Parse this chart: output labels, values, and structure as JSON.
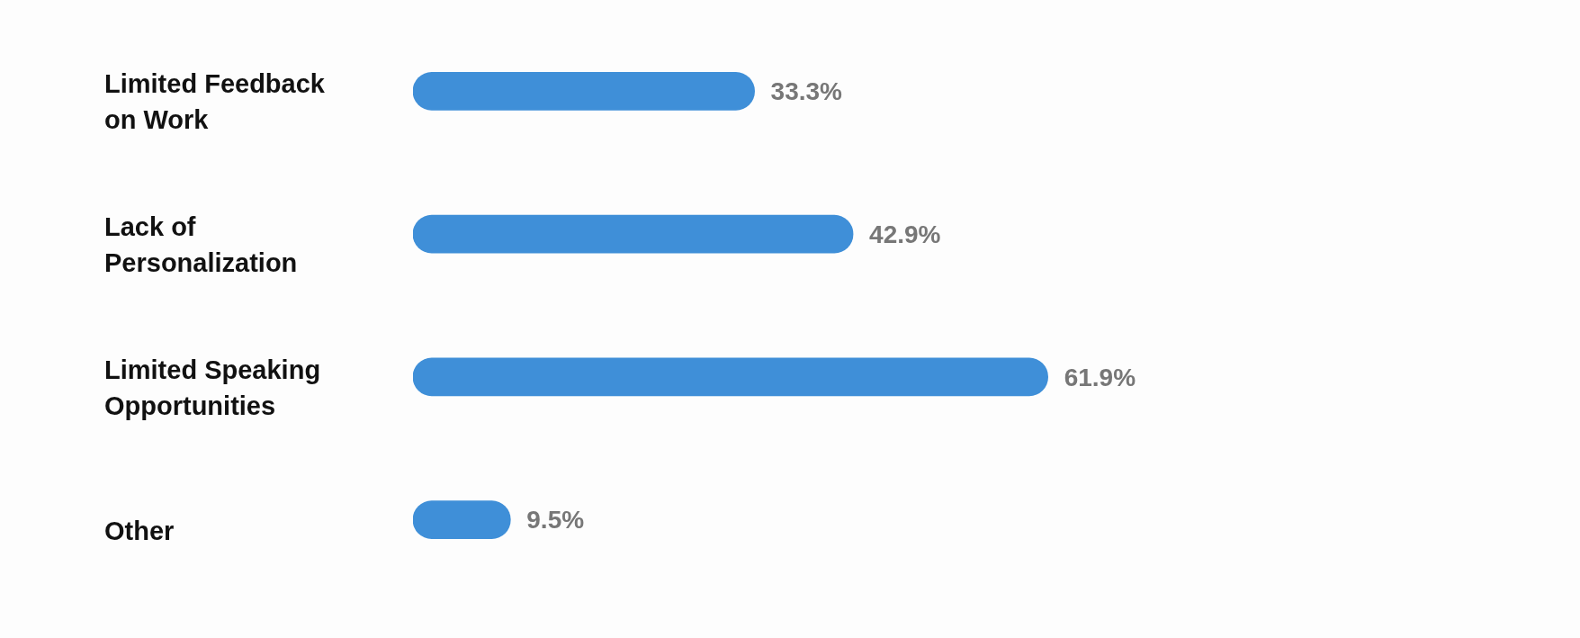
{
  "chart_data": {
    "type": "bar",
    "orientation": "horizontal",
    "categories": [
      "Limited Feedback on Work",
      "Lack of Personalization",
      "Limited Speaking Opportunities",
      "Other"
    ],
    "values": [
      33.3,
      42.9,
      61.9,
      9.5
    ],
    "value_labels": [
      "33.3%",
      "42.9%",
      "61.9%",
      "9.5%"
    ],
    "color": "#3f8fd8"
  }
}
